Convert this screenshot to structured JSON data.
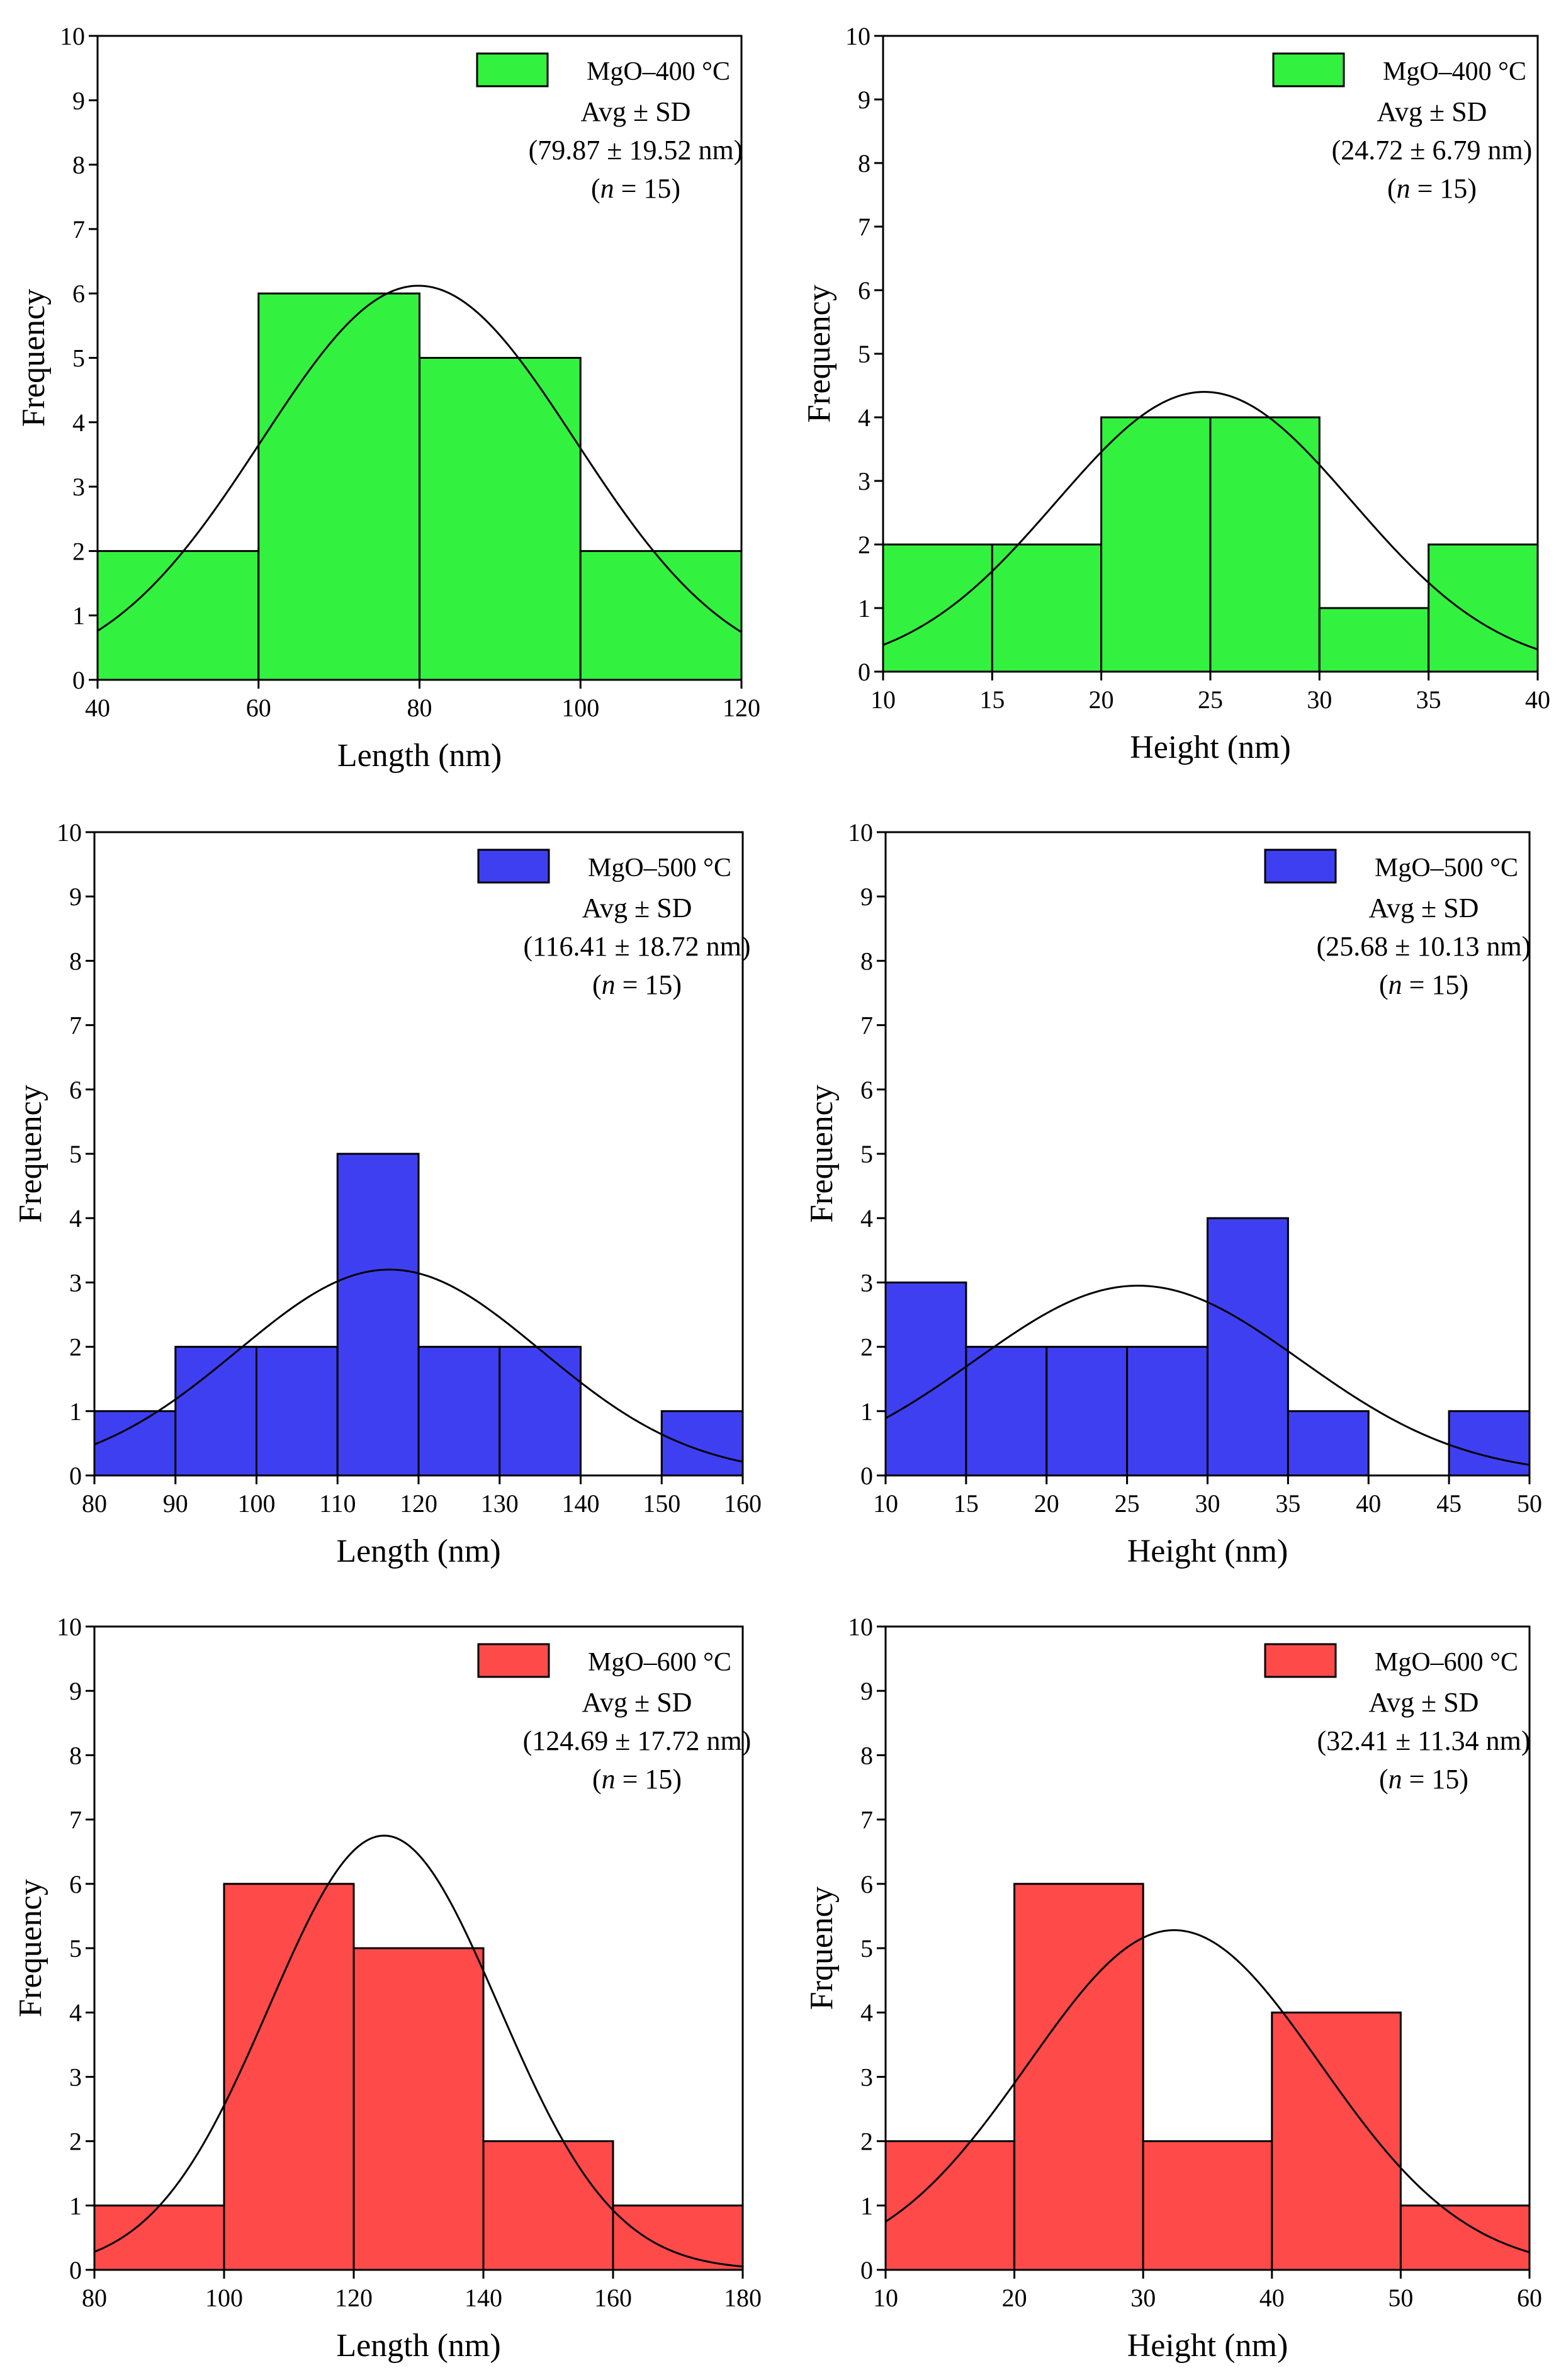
{
  "chart_data": [
    {
      "type": "bar",
      "title": "",
      "xlabel": "Length (nm)",
      "ylabel": "Frequency",
      "xlim": [
        40,
        120
      ],
      "ylim": [
        0,
        10
      ],
      "xticks": [
        40,
        60,
        80,
        100,
        120
      ],
      "yticks": [
        0,
        1,
        2,
        3,
        4,
        5,
        6,
        7,
        8,
        9,
        10
      ],
      "bins": [
        [
          40,
          60,
          2
        ],
        [
          60,
          80,
          6
        ],
        [
          80,
          100,
          5
        ],
        [
          100,
          120,
          2
        ]
      ],
      "fit": {
        "kind": "normal",
        "mean": 79.87,
        "sd": 19.52,
        "peak": 6.12
      },
      "legend": {
        "label": "MgO–400 °C",
        "position": "top-right"
      },
      "color": "#33f23f",
      "stats": {
        "line1": "Avg ± SD",
        "line2": "(79.87 ± 19.52 nm)",
        "n_prefix": "(",
        "n_symbol": "n",
        "n_suffix": " = 15)"
      }
    },
    {
      "type": "bar",
      "title": "",
      "xlabel": "Height (nm)",
      "ylabel": "Frequency",
      "xlim": [
        10,
        40
      ],
      "ylim": [
        0,
        10
      ],
      "xticks": [
        10,
        15,
        20,
        25,
        30,
        35,
        40
      ],
      "yticks": [
        0,
        1,
        2,
        3,
        4,
        5,
        6,
        7,
        8,
        9,
        10
      ],
      "bins": [
        [
          10,
          15,
          2
        ],
        [
          15,
          20,
          2
        ],
        [
          20,
          25,
          4
        ],
        [
          25,
          30,
          4
        ],
        [
          30,
          35,
          1
        ],
        [
          35,
          40,
          2
        ]
      ],
      "fit": {
        "kind": "normal",
        "mean": 24.72,
        "sd": 6.79,
        "peak": 4.4
      },
      "legend": {
        "label": "MgO–400 °C",
        "position": "top-right"
      },
      "color": "#33f23f",
      "stats": {
        "line1": "Avg ± SD",
        "line2": "(24.72 ± 6.79 nm)",
        "n_prefix": "(",
        "n_symbol": "n",
        "n_suffix": " = 15)"
      }
    },
    {
      "type": "bar",
      "title": "",
      "xlabel": "Length (nm)",
      "ylabel": "Frequency",
      "xlim": [
        80,
        160
      ],
      "ylim": [
        0,
        10
      ],
      "xticks": [
        80,
        90,
        100,
        110,
        120,
        130,
        140,
        150,
        160
      ],
      "yticks": [
        0,
        1,
        2,
        3,
        4,
        5,
        6,
        7,
        8,
        9,
        10
      ],
      "bins": [
        [
          80,
          90,
          1
        ],
        [
          90,
          100,
          2
        ],
        [
          100,
          110,
          2
        ],
        [
          110,
          120,
          5
        ],
        [
          120,
          130,
          2
        ],
        [
          130,
          140,
          2
        ],
        [
          140,
          150,
          0
        ],
        [
          150,
          160,
          1
        ]
      ],
      "fit": {
        "kind": "normal",
        "mean": 116.41,
        "sd": 18.72,
        "peak": 3.2
      },
      "legend": {
        "label": "MgO–500 °C",
        "position": "top-right"
      },
      "color": "#3f3ff2",
      "stats": {
        "line1": "Avg ± SD",
        "line2": "(116.41 ± 18.72 nm)",
        "n_prefix": "(",
        "n_symbol": "n",
        "n_suffix": " = 15)"
      }
    },
    {
      "type": "bar",
      "title": "",
      "xlabel": "Height (nm)",
      "ylabel": "Frequency",
      "xlim": [
        10,
        50
      ],
      "ylim": [
        0,
        10
      ],
      "xticks": [
        10,
        15,
        20,
        25,
        30,
        35,
        40,
        45,
        50
      ],
      "yticks": [
        0,
        1,
        2,
        3,
        4,
        5,
        6,
        7,
        8,
        9,
        10
      ],
      "bins": [
        [
          10,
          15,
          3
        ],
        [
          15,
          20,
          2
        ],
        [
          20,
          25,
          2
        ],
        [
          25,
          30,
          2
        ],
        [
          30,
          35,
          4
        ],
        [
          35,
          40,
          1
        ],
        [
          40,
          45,
          0
        ],
        [
          45,
          50,
          1
        ]
      ],
      "fit": {
        "kind": "normal",
        "mean": 25.68,
        "sd": 10.13,
        "peak": 2.95
      },
      "legend": {
        "label": "MgO–500 °C",
        "position": "top-right"
      },
      "color": "#3f3ff2",
      "stats": {
        "line1": "Avg ± SD",
        "line2": "(25.68 ± 10.13 nm)",
        "n_prefix": "(",
        "n_symbol": "n",
        "n_suffix": " = 15)"
      }
    },
    {
      "type": "bar",
      "title": "",
      "xlabel": "Length (nm)",
      "ylabel": "Frequency",
      "xlim": [
        80,
        180
      ],
      "ylim": [
        0,
        10
      ],
      "xticks": [
        80,
        100,
        120,
        140,
        160,
        180
      ],
      "yticks": [
        0,
        1,
        2,
        3,
        4,
        5,
        6,
        7,
        8,
        9,
        10
      ],
      "bins": [
        [
          80,
          100,
          1
        ],
        [
          100,
          120,
          6
        ],
        [
          120,
          140,
          5
        ],
        [
          140,
          160,
          2
        ],
        [
          160,
          180,
          1
        ]
      ],
      "fit": {
        "kind": "normal",
        "mean": 124.69,
        "sd": 17.72,
        "peak": 6.75
      },
      "legend": {
        "label": "MgO–600 °C",
        "position": "top-right"
      },
      "color": "#ff4a4a",
      "stats": {
        "line1": "Avg ± SD",
        "line2": "(124.69 ± 17.72 nm)",
        "n_prefix": "(",
        "n_symbol": "n",
        "n_suffix": " = 15)"
      }
    },
    {
      "type": "bar",
      "title": "",
      "xlabel": "Height (nm)",
      "ylabel": "Frquency",
      "xlim": [
        10,
        60
      ],
      "ylim": [
        0,
        10
      ],
      "xticks": [
        10,
        20,
        30,
        40,
        50,
        60
      ],
      "yticks": [
        0,
        1,
        2,
        3,
        4,
        5,
        6,
        7,
        8,
        9,
        10
      ],
      "bins": [
        [
          10,
          20,
          2
        ],
        [
          20,
          30,
          6
        ],
        [
          30,
          40,
          2
        ],
        [
          40,
          50,
          4
        ],
        [
          50,
          60,
          1
        ]
      ],
      "fit": {
        "kind": "normal",
        "mean": 32.41,
        "sd": 11.34,
        "peak": 5.28
      },
      "legend": {
        "label": "MgO–600 °C",
        "position": "top-right"
      },
      "color": "#ff4a4a",
      "stats": {
        "line1": "Avg ± SD",
        "line2": "(32.41 ± 11.34 nm)",
        "n_prefix": "(",
        "n_symbol": "n",
        "n_suffix": " = 15)"
      }
    }
  ]
}
